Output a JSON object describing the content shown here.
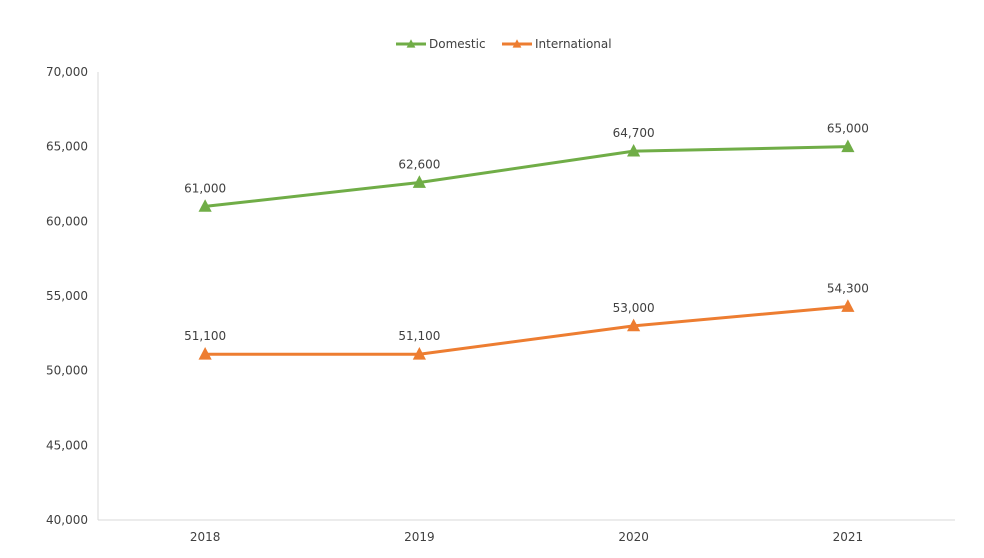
{
  "chart_data": {
    "type": "line",
    "title": "",
    "xlabel": "",
    "ylabel": "",
    "categories": [
      "2018",
      "2019",
      "2020",
      "2021"
    ],
    "series": [
      {
        "name": "Domestic",
        "values": [
          61000,
          62600,
          64700,
          65000
        ],
        "labels": [
          "61,000",
          "62,600",
          "64,700",
          "65,000"
        ],
        "color": "#70AD47",
        "marker": "triangle"
      },
      {
        "name": "International",
        "values": [
          51100,
          51100,
          53000,
          54300
        ],
        "labels": [
          "51,100",
          "51,100",
          "53,000",
          "54,300"
        ],
        "color": "#ED7D31",
        "marker": "triangle"
      }
    ],
    "ylim": [
      40000,
      70000
    ],
    "yticks": [
      40000,
      45000,
      50000,
      55000,
      60000,
      65000,
      70000
    ],
    "ytick_labels": [
      "40,000",
      "45,000",
      "50,000",
      "55,000",
      "60,000",
      "65,000",
      "70,000"
    ],
    "grid": false,
    "legend_position": "top-center"
  }
}
